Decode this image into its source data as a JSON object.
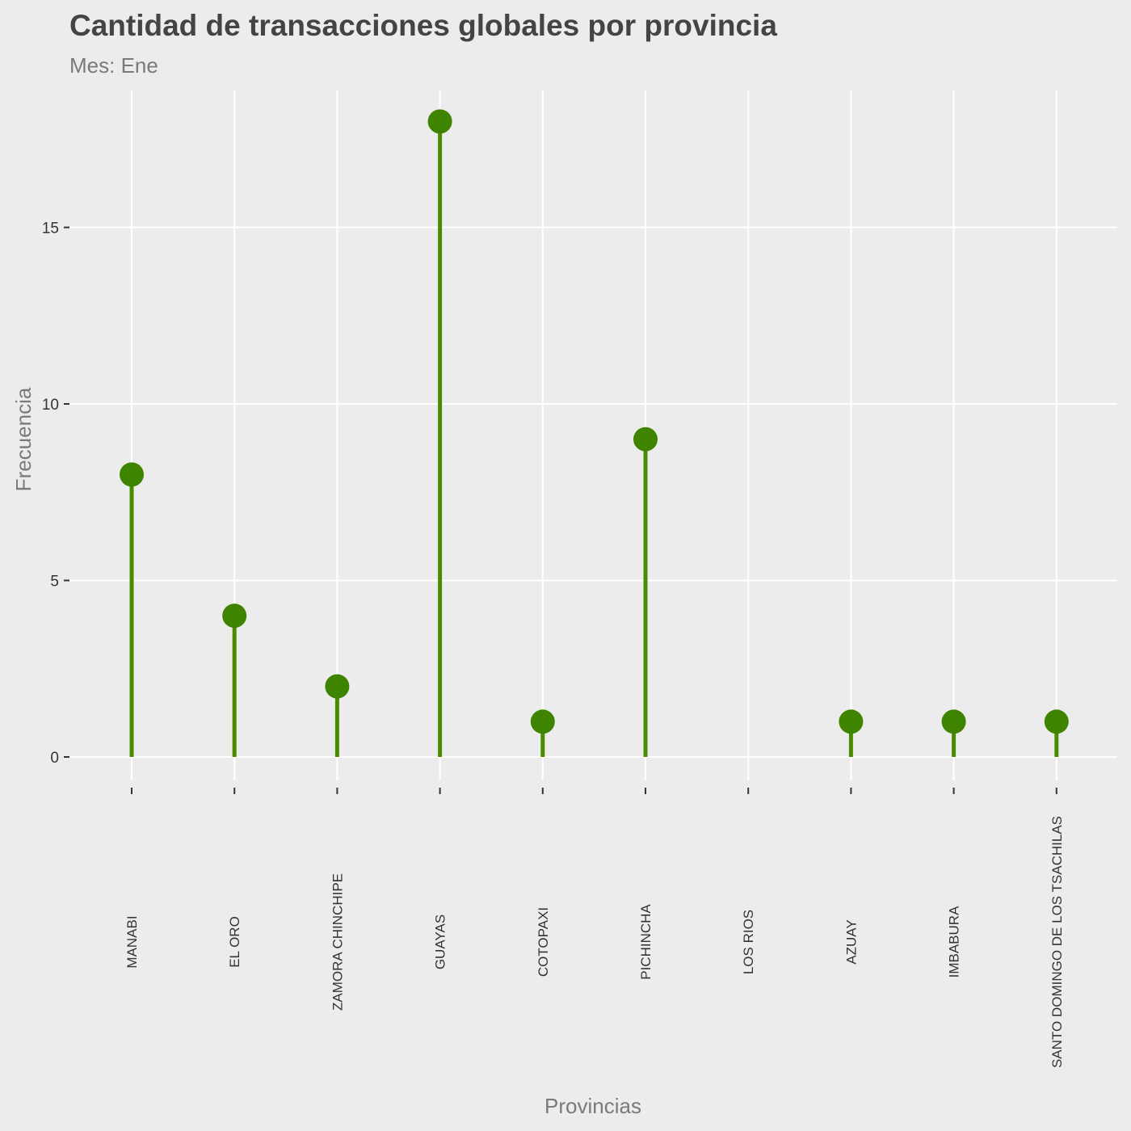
{
  "chart_data": {
    "type": "lollipop",
    "title": "Cantidad de transacciones globales por provincia",
    "subtitle": "Mes: Ene",
    "xlabel": "Provincias",
    "ylabel": "Frecuencia",
    "categories": [
      "MANABI",
      "EL ORO",
      "ZAMORA CHINCHIPE",
      "GUAYAS",
      "COTOPAXI",
      "PICHINCHA",
      "LOS RIOS",
      "AZUAY",
      "IMBABURA",
      "SANTO DOMINGO DE LOS TSACHILAS"
    ],
    "values": [
      8,
      4,
      2,
      18,
      1,
      9,
      0,
      1,
      1,
      1
    ],
    "y_ticks": [
      0,
      5,
      10,
      15
    ],
    "ylim": [
      0,
      19
    ],
    "grid": true,
    "legend": "none",
    "colors": {
      "background": "#ececec",
      "gridline": "#ffffff",
      "mark": "#4a8c00",
      "point": "#3f8400"
    }
  }
}
